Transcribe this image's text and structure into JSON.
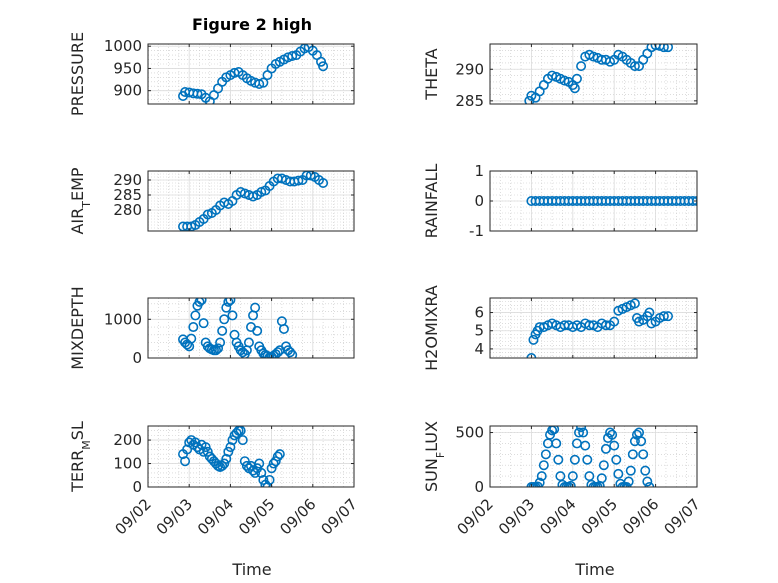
{
  "title": "Figure 2 high",
  "xlabel": "Time",
  "x_tick_labels": [
    "09/02",
    "09/03",
    "09/04",
    "09/05",
    "09/06",
    "09/07"
  ],
  "marker_color": "#0072BD",
  "chart_data": [
    {
      "type": "scatter",
      "ylabel": "PRESSURE",
      "ylim": [
        870,
        1005
      ],
      "yticks": [
        900,
        950,
        1000
      ],
      "grid": true,
      "x_unit": "days since 09/02",
      "points": [
        [
          0.85,
          888
        ],
        [
          0.9,
          897
        ],
        [
          1.0,
          896
        ],
        [
          1.1,
          894
        ],
        [
          1.2,
          893
        ],
        [
          1.3,
          892
        ],
        [
          1.4,
          884
        ],
        [
          1.5,
          876
        ],
        [
          1.6,
          890
        ],
        [
          1.7,
          905
        ],
        [
          1.8,
          920
        ],
        [
          1.9,
          930
        ],
        [
          2.0,
          935
        ],
        [
          2.1,
          940
        ],
        [
          2.2,
          942
        ],
        [
          2.3,
          935
        ],
        [
          2.4,
          928
        ],
        [
          2.5,
          922
        ],
        [
          2.6,
          918
        ],
        [
          2.7,
          915
        ],
        [
          2.8,
          918
        ],
        [
          2.9,
          935
        ],
        [
          3.0,
          950
        ],
        [
          3.1,
          960
        ],
        [
          3.2,
          965
        ],
        [
          3.3,
          970
        ],
        [
          3.4,
          975
        ],
        [
          3.5,
          978
        ],
        [
          3.6,
          980
        ],
        [
          3.7,
          988
        ],
        [
          3.8,
          995
        ],
        [
          3.9,
          998
        ],
        [
          4.0,
          990
        ],
        [
          4.1,
          980
        ],
        [
          4.2,
          965
        ],
        [
          4.25,
          955
        ]
      ]
    },
    {
      "type": "scatter",
      "ylabel": "THETA",
      "ylim": [
        284.5,
        294
      ],
      "yticks": [
        285,
        290
      ],
      "grid": true,
      "x_unit": "days since 09/02",
      "points": [
        [
          0.95,
          285.0
        ],
        [
          1.0,
          285.8
        ],
        [
          1.1,
          285.5
        ],
        [
          1.2,
          286.5
        ],
        [
          1.3,
          287.5
        ],
        [
          1.4,
          288.5
        ],
        [
          1.5,
          289.0
        ],
        [
          1.6,
          288.8
        ],
        [
          1.7,
          288.5
        ],
        [
          1.8,
          288.2
        ],
        [
          1.9,
          288.0
        ],
        [
          2.0,
          287.5
        ],
        [
          2.05,
          287.0
        ],
        [
          2.1,
          288.5
        ],
        [
          2.2,
          290.5
        ],
        [
          2.3,
          292.0
        ],
        [
          2.4,
          292.3
        ],
        [
          2.5,
          292.0
        ],
        [
          2.6,
          291.8
        ],
        [
          2.7,
          291.5
        ],
        [
          2.8,
          291.5
        ],
        [
          2.9,
          291.2
        ],
        [
          3.0,
          291.5
        ],
        [
          3.1,
          292.3
        ],
        [
          3.2,
          292.0
        ],
        [
          3.3,
          291.5
        ],
        [
          3.4,
          291.0
        ],
        [
          3.5,
          290.5
        ],
        [
          3.6,
          290.5
        ],
        [
          3.7,
          291.5
        ],
        [
          3.8,
          292.5
        ],
        [
          3.9,
          293.5
        ],
        [
          4.0,
          293.8
        ],
        [
          4.1,
          293.7
        ],
        [
          4.2,
          293.5
        ],
        [
          4.3,
          293.5
        ]
      ]
    },
    {
      "type": "scatter",
      "ylabel": "AIR_TEMP",
      "ylim": [
        273,
        293
      ],
      "yticks": [
        280,
        285,
        290
      ],
      "grid": true,
      "x_unit": "days since 09/02",
      "points": [
        [
          0.85,
          274.5
        ],
        [
          0.95,
          274.5
        ],
        [
          1.05,
          274.5
        ],
        [
          1.15,
          275.0
        ],
        [
          1.25,
          276.0
        ],
        [
          1.35,
          277.0
        ],
        [
          1.45,
          278.5
        ],
        [
          1.55,
          279.0
        ],
        [
          1.65,
          280.0
        ],
        [
          1.75,
          281.5
        ],
        [
          1.85,
          282.5
        ],
        [
          1.95,
          282.0
        ],
        [
          2.05,
          283.0
        ],
        [
          2.15,
          285.0
        ],
        [
          2.25,
          286.0
        ],
        [
          2.35,
          285.5
        ],
        [
          2.45,
          285.0
        ],
        [
          2.55,
          284.5
        ],
        [
          2.65,
          285.0
        ],
        [
          2.75,
          286.0
        ],
        [
          2.85,
          286.5
        ],
        [
          2.95,
          288.0
        ],
        [
          3.05,
          289.5
        ],
        [
          3.15,
          290.5
        ],
        [
          3.25,
          290.5
        ],
        [
          3.35,
          290.0
        ],
        [
          3.45,
          289.5
        ],
        [
          3.55,
          289.5
        ],
        [
          3.65,
          289.8
        ],
        [
          3.75,
          290.0
        ],
        [
          3.85,
          291.5
        ],
        [
          3.95,
          291.5
        ],
        [
          4.05,
          291.0
        ],
        [
          4.15,
          290.0
        ],
        [
          4.25,
          289.0
        ]
      ]
    },
    {
      "type": "scatter",
      "ylabel": "RAINFALL",
      "ylim": [
        -1,
        1
      ],
      "yticks": [
        -1,
        0,
        1
      ],
      "grid": true,
      "x_unit": "days since 09/02",
      "points": [
        [
          1.0,
          0
        ],
        [
          1.1,
          0
        ],
        [
          1.2,
          0
        ],
        [
          1.3,
          0
        ],
        [
          1.4,
          0
        ],
        [
          1.5,
          0
        ],
        [
          1.6,
          0
        ],
        [
          1.7,
          0
        ],
        [
          1.8,
          0
        ],
        [
          1.9,
          0
        ],
        [
          2.0,
          0
        ],
        [
          2.1,
          0
        ],
        [
          2.2,
          0
        ],
        [
          2.3,
          0
        ],
        [
          2.4,
          0
        ],
        [
          2.5,
          0
        ],
        [
          2.6,
          0
        ],
        [
          2.7,
          0
        ],
        [
          2.8,
          0
        ],
        [
          2.9,
          0
        ],
        [
          3.0,
          0
        ],
        [
          3.1,
          0
        ],
        [
          3.2,
          0
        ],
        [
          3.3,
          0
        ],
        [
          3.4,
          0
        ],
        [
          3.5,
          0
        ],
        [
          3.6,
          0
        ],
        [
          3.7,
          0
        ],
        [
          3.8,
          0
        ],
        [
          3.9,
          0
        ],
        [
          4.0,
          0
        ],
        [
          4.1,
          0
        ],
        [
          4.2,
          0
        ],
        [
          4.3,
          0
        ],
        [
          4.4,
          0
        ],
        [
          4.5,
          0
        ],
        [
          4.6,
          0
        ],
        [
          4.7,
          0
        ],
        [
          4.8,
          0
        ],
        [
          4.9,
          0
        ],
        [
          5.0,
          0
        ]
      ]
    },
    {
      "type": "scatter",
      "ylabel": "MIXDEPTH",
      "ylim": [
        0,
        1550
      ],
      "yticks": [
        0,
        1000
      ],
      "grid": true,
      "x_unit": "days since 09/02",
      "points": [
        [
          0.85,
          480
        ],
        [
          0.9,
          400
        ],
        [
          0.95,
          350
        ],
        [
          1.0,
          300
        ],
        [
          1.05,
          500
        ],
        [
          1.1,
          800
        ],
        [
          1.15,
          1100
        ],
        [
          1.2,
          1350
        ],
        [
          1.25,
          1450
        ],
        [
          1.3,
          1500
        ],
        [
          1.35,
          900
        ],
        [
          1.4,
          400
        ],
        [
          1.45,
          300
        ],
        [
          1.5,
          250
        ],
        [
          1.55,
          220
        ],
        [
          1.6,
          200
        ],
        [
          1.65,
          200
        ],
        [
          1.7,
          250
        ],
        [
          1.75,
          400
        ],
        [
          1.8,
          700
        ],
        [
          1.85,
          1000
        ],
        [
          1.9,
          1300
        ],
        [
          1.95,
          1450
        ],
        [
          2.0,
          1500
        ],
        [
          2.05,
          1100
        ],
        [
          2.1,
          600
        ],
        [
          2.15,
          400
        ],
        [
          2.2,
          300
        ],
        [
          2.25,
          200
        ],
        [
          2.3,
          150
        ],
        [
          2.35,
          100
        ],
        [
          2.4,
          200
        ],
        [
          2.45,
          400
        ],
        [
          2.5,
          800
        ],
        [
          2.55,
          1100
        ],
        [
          2.6,
          1300
        ],
        [
          2.65,
          700
        ],
        [
          2.7,
          300
        ],
        [
          2.75,
          200
        ],
        [
          2.8,
          120
        ],
        [
          2.85,
          80
        ],
        [
          2.9,
          50
        ],
        [
          2.95,
          20
        ],
        [
          3.0,
          30
        ],
        [
          3.05,
          60
        ],
        [
          3.1,
          100
        ],
        [
          3.15,
          150
        ],
        [
          3.2,
          200
        ],
        [
          3.25,
          950
        ],
        [
          3.3,
          750
        ],
        [
          3.35,
          300
        ],
        [
          3.4,
          200
        ],
        [
          3.45,
          150
        ],
        [
          3.5,
          80
        ]
      ]
    },
    {
      "type": "scatter",
      "ylabel": "H2OMIXRA",
      "ylim": [
        3.5,
        6.8
      ],
      "yticks": [
        4,
        5,
        6
      ],
      "grid": true,
      "x_unit": "days since 09/02",
      "points": [
        [
          1.0,
          3.5
        ],
        [
          1.05,
          4.5
        ],
        [
          1.1,
          4.8
        ],
        [
          1.15,
          5.0
        ],
        [
          1.2,
          5.2
        ],
        [
          1.3,
          5.2
        ],
        [
          1.4,
          5.3
        ],
        [
          1.5,
          5.4
        ],
        [
          1.6,
          5.3
        ],
        [
          1.7,
          5.2
        ],
        [
          1.8,
          5.3
        ],
        [
          1.9,
          5.3
        ],
        [
          2.0,
          5.2
        ],
        [
          2.1,
          5.3
        ],
        [
          2.2,
          5.2
        ],
        [
          2.3,
          5.4
        ],
        [
          2.4,
          5.3
        ],
        [
          2.5,
          5.3
        ],
        [
          2.6,
          5.2
        ],
        [
          2.7,
          5.4
        ],
        [
          2.8,
          5.3
        ],
        [
          2.9,
          5.3
        ],
        [
          3.0,
          5.5
        ],
        [
          3.1,
          6.1
        ],
        [
          3.2,
          6.2
        ],
        [
          3.3,
          6.3
        ],
        [
          3.4,
          6.4
        ],
        [
          3.5,
          6.5
        ],
        [
          3.55,
          5.7
        ],
        [
          3.6,
          5.5
        ],
        [
          3.7,
          5.6
        ],
        [
          3.8,
          5.8
        ],
        [
          3.85,
          6.0
        ],
        [
          3.9,
          5.4
        ],
        [
          4.0,
          5.5
        ],
        [
          4.1,
          5.7
        ],
        [
          4.2,
          5.8
        ],
        [
          4.3,
          5.8
        ]
      ]
    },
    {
      "type": "scatter",
      "ylabel": "TERR_MSL",
      "ylim": [
        0,
        260
      ],
      "yticks": [
        0,
        100,
        200
      ],
      "grid": true,
      "x_unit": "days since 09/02",
      "points": [
        [
          0.85,
          140
        ],
        [
          0.9,
          110
        ],
        [
          0.95,
          160
        ],
        [
          1.0,
          190
        ],
        [
          1.05,
          200
        ],
        [
          1.1,
          180
        ],
        [
          1.15,
          190
        ],
        [
          1.2,
          170
        ],
        [
          1.25,
          160
        ],
        [
          1.3,
          180
        ],
        [
          1.35,
          150
        ],
        [
          1.4,
          170
        ],
        [
          1.45,
          150
        ],
        [
          1.5,
          130
        ],
        [
          1.55,
          120
        ],
        [
          1.6,
          110
        ],
        [
          1.65,
          100
        ],
        [
          1.7,
          90
        ],
        [
          1.75,
          85
        ],
        [
          1.8,
          90
        ],
        [
          1.85,
          100
        ],
        [
          1.9,
          120
        ],
        [
          1.95,
          150
        ],
        [
          2.0,
          170
        ],
        [
          2.05,
          200
        ],
        [
          2.1,
          220
        ],
        [
          2.15,
          230
        ],
        [
          2.2,
          240
        ],
        [
          2.25,
          240
        ],
        [
          2.3,
          200
        ],
        [
          2.35,
          110
        ],
        [
          2.4,
          90
        ],
        [
          2.45,
          80
        ],
        [
          2.5,
          90
        ],
        [
          2.55,
          70
        ],
        [
          2.6,
          60
        ],
        [
          2.65,
          80
        ],
        [
          2.7,
          100
        ],
        [
          2.75,
          60
        ],
        [
          2.8,
          30
        ],
        [
          2.85,
          10
        ],
        [
          2.9,
          0
        ],
        [
          2.95,
          30
        ],
        [
          3.0,
          80
        ],
        [
          3.05,
          100
        ],
        [
          3.1,
          110
        ],
        [
          3.15,
          130
        ],
        [
          3.2,
          140
        ]
      ]
    },
    {
      "type": "scatter",
      "ylabel": "SUN_FLUX",
      "ylim": [
        0,
        560
      ],
      "yticks": [
        0,
        500
      ],
      "grid": true,
      "x_unit": "days since 09/02",
      "points": [
        [
          1.0,
          0
        ],
        [
          1.05,
          0
        ],
        [
          1.1,
          0
        ],
        [
          1.15,
          5
        ],
        [
          1.2,
          40
        ],
        [
          1.25,
          100
        ],
        [
          1.3,
          200
        ],
        [
          1.35,
          300
        ],
        [
          1.4,
          400
        ],
        [
          1.45,
          480
        ],
        [
          1.5,
          520
        ],
        [
          1.55,
          530
        ],
        [
          1.6,
          400
        ],
        [
          1.65,
          250
        ],
        [
          1.7,
          100
        ],
        [
          1.75,
          20
        ],
        [
          1.8,
          0
        ],
        [
          1.85,
          0
        ],
        [
          1.9,
          0
        ],
        [
          1.95,
          10
        ],
        [
          2.0,
          100
        ],
        [
          2.05,
          250
        ],
        [
          2.1,
          400
        ],
        [
          2.15,
          500
        ],
        [
          2.2,
          550
        ],
        [
          2.25,
          500
        ],
        [
          2.3,
          380
        ],
        [
          2.35,
          250
        ],
        [
          2.4,
          100
        ],
        [
          2.45,
          20
        ],
        [
          2.5,
          0
        ],
        [
          2.55,
          0
        ],
        [
          2.6,
          0
        ],
        [
          2.65,
          10
        ],
        [
          2.7,
          80
        ],
        [
          2.75,
          200
        ],
        [
          2.8,
          350
        ],
        [
          2.85,
          450
        ],
        [
          2.9,
          500
        ],
        [
          2.95,
          480
        ],
        [
          3.0,
          380
        ],
        [
          3.05,
          250
        ],
        [
          3.1,
          120
        ],
        [
          3.15,
          30
        ],
        [
          3.2,
          0
        ],
        [
          3.25,
          0
        ],
        [
          3.3,
          0
        ],
        [
          3.35,
          50
        ],
        [
          3.4,
          150
        ],
        [
          3.45,
          300
        ],
        [
          3.5,
          420
        ],
        [
          3.55,
          480
        ],
        [
          3.6,
          500
        ],
        [
          3.65,
          420
        ],
        [
          3.7,
          300
        ],
        [
          3.75,
          150
        ],
        [
          3.8,
          50
        ],
        [
          3.85,
          0
        ]
      ]
    }
  ]
}
